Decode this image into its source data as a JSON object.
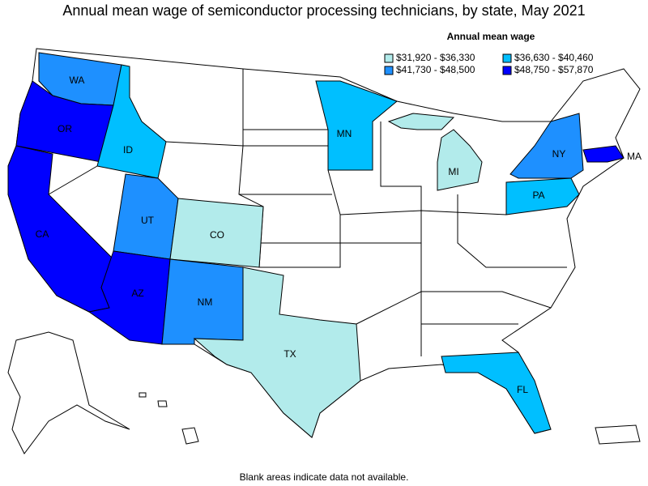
{
  "title": "Annual mean wage of semiconductor processing technicians, by state, May 2021",
  "legend": {
    "title": "Annual mean wage",
    "items": [
      {
        "label": "$31,920 - $36,330",
        "color": "#b2ebeb"
      },
      {
        "label": "$36,630 - $40,460",
        "color": "#00bfff"
      },
      {
        "label": "$41,730 - $48,500",
        "color": "#1e90ff"
      },
      {
        "label": "$48,750 - $57,870",
        "color": "#0000ff"
      }
    ]
  },
  "states": [
    {
      "label": "WA",
      "color": "#1e90ff"
    },
    {
      "label": "OR",
      "color": "#0000ff"
    },
    {
      "label": "CA",
      "color": "#0000ff"
    },
    {
      "label": "ID",
      "color": "#00bfff"
    },
    {
      "label": "UT",
      "color": "#1e90ff"
    },
    {
      "label": "CO",
      "color": "#b2ebeb"
    },
    {
      "label": "AZ",
      "color": "#0000ff"
    },
    {
      "label": "NM",
      "color": "#1e90ff"
    },
    {
      "label": "TX",
      "color": "#b2ebeb"
    },
    {
      "label": "MN",
      "color": "#00bfff"
    },
    {
      "label": "MI",
      "color": "#b2ebeb"
    },
    {
      "label": "NY",
      "color": "#1e90ff"
    },
    {
      "label": "PA",
      "color": "#00bfff"
    },
    {
      "label": "FL",
      "color": "#00bfff"
    },
    {
      "label": "MA",
      "color": "#0000ff"
    }
  ],
  "note": "Blank areas indicate data not available."
}
